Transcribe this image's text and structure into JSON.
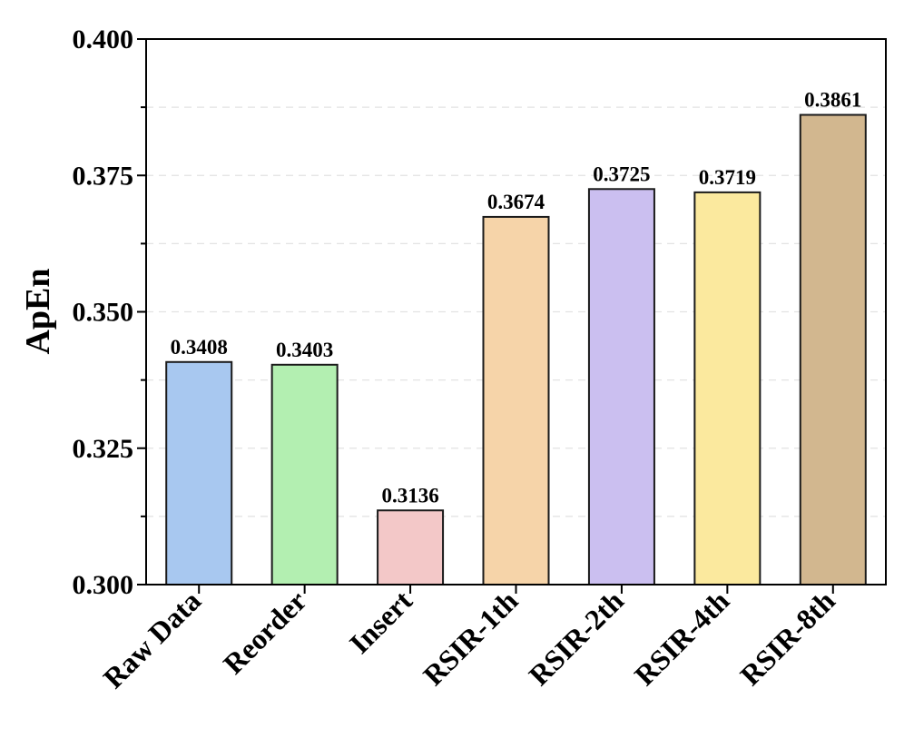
{
  "chart_data": {
    "type": "bar",
    "title": "",
    "xlabel": "",
    "ylabel": "ApEn",
    "categories": [
      "Raw Data",
      "Reorder",
      "Insert",
      "RSIR-1th",
      "RSIR-2th",
      "RSIR-4th",
      "RSIR-8th"
    ],
    "values": [
      0.3408,
      0.3403,
      0.3136,
      0.3674,
      0.3725,
      0.3719,
      0.3861
    ],
    "value_labels": [
      "0.3408",
      "0.3403",
      "0.3136",
      "0.3674",
      "0.3725",
      "0.3719",
      "0.3861"
    ],
    "bar_colors": [
      "#a8c8f0",
      "#b3efb1",
      "#f3c8c8",
      "#f6d4a9",
      "#cbbff0",
      "#fbe99e",
      "#d2b78f"
    ],
    "ylim": [
      0.3,
      0.4
    ],
    "yticks": [
      0.3,
      0.325,
      0.35,
      0.375,
      0.4
    ],
    "ytick_labels": [
      "0.300",
      "0.325",
      "0.350",
      "0.375",
      "0.400"
    ],
    "grid": "horizontal dashed",
    "legend": "none"
  }
}
